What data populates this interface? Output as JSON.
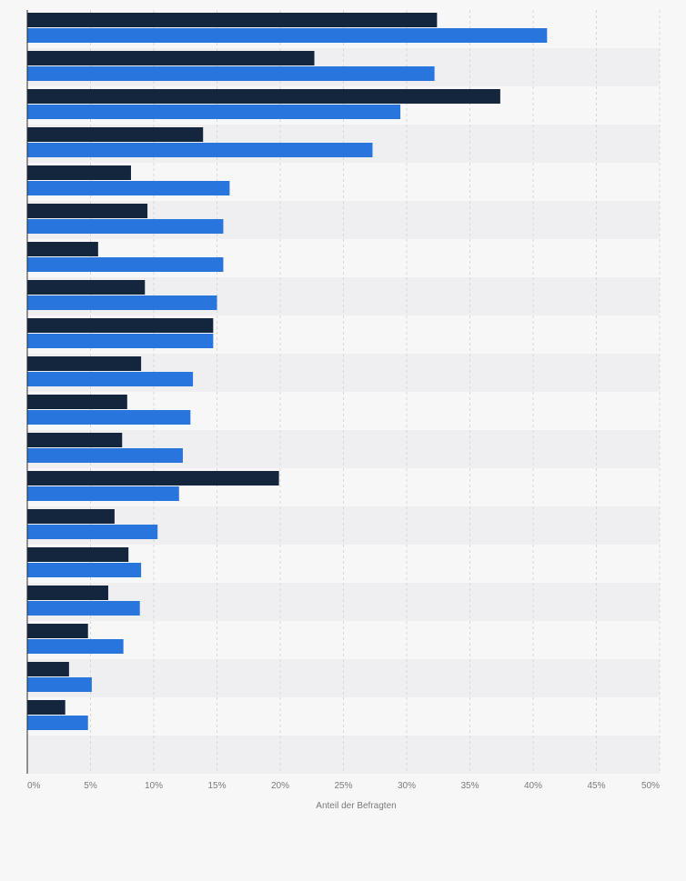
{
  "chart_data": {
    "type": "bar",
    "orientation": "horizontal",
    "title": "",
    "xlabel": "Anteil der Befragten",
    "ylabel": "",
    "xlim": [
      0,
      50
    ],
    "x_ticks": [
      0,
      5,
      10,
      15,
      20,
      25,
      30,
      35,
      40,
      45,
      50
    ],
    "x_tick_labels": [
      "0%",
      "5%",
      "10%",
      "15%",
      "20%",
      "25%",
      "30%",
      "35%",
      "40%",
      "45%",
      "50%"
    ],
    "grid": true,
    "categories": [
      "",
      "",
      "",
      "",
      "",
      "",
      "",
      "",
      "",
      "",
      "",
      "",
      "",
      "",
      "",
      "",
      "",
      "",
      ""
    ],
    "series": [
      {
        "color": "#14263e",
        "values": [
          32.4,
          22.7,
          37.4,
          13.9,
          8.2,
          9.5,
          5.6,
          9.3,
          14.7,
          9.0,
          7.9,
          7.5,
          19.9,
          6.9,
          8.0,
          6.4,
          4.8,
          3.3,
          3.0
        ]
      },
      {
        "color": "#2876dd",
        "values": [
          41.1,
          32.2,
          29.5,
          27.3,
          16.0,
          15.5,
          15.5,
          15.0,
          14.7,
          13.1,
          12.9,
          12.3,
          12.0,
          10.3,
          9.0,
          8.9,
          7.6,
          5.1,
          4.8
        ]
      }
    ]
  },
  "colors": {
    "band_light": "#f7f7f8",
    "band_dark": "#efeff1",
    "grid": "#d7d7db",
    "axis": "#2b2b2b"
  }
}
